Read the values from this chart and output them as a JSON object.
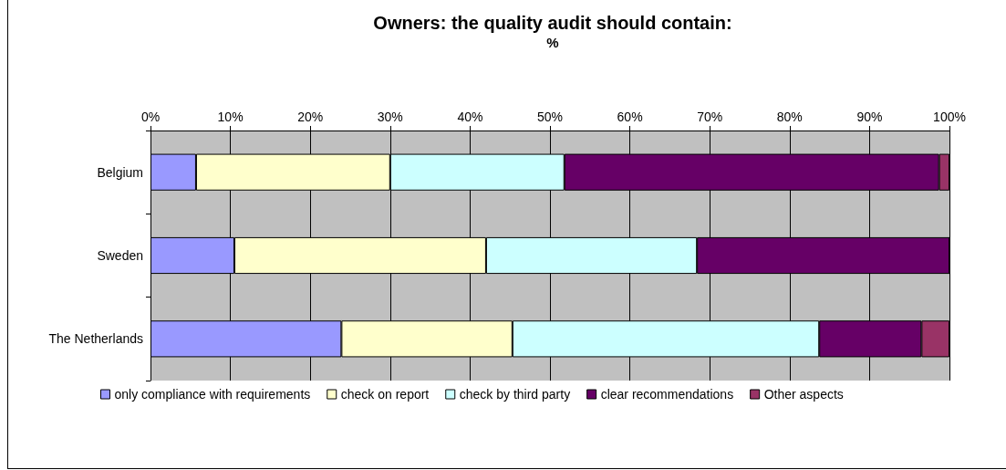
{
  "chart_data": {
    "type": "bar",
    "orientation": "horizontal",
    "stacked": true,
    "title": "Owners: the quality audit should contain:",
    "xlabel": "%",
    "categories": [
      "Belgium",
      "Sweden",
      "The Netherlands"
    ],
    "series": [
      {
        "name": "only compliance with requirements",
        "color": "#9999ff",
        "values": [
          5.7,
          10.5,
          23.9
        ]
      },
      {
        "name": "check on report",
        "color": "#ffffcc",
        "values": [
          24.3,
          31.5,
          21.4
        ]
      },
      {
        "name": "check by third party",
        "color": "#ccffff",
        "values": [
          21.8,
          26.4,
          38.4
        ]
      },
      {
        "name": "clear recommendations",
        "color": "#660066",
        "values": [
          46.9,
          31.6,
          12.8
        ]
      },
      {
        "name": "Other aspects",
        "color": "#993366",
        "values": [
          1.3,
          0,
          3.5
        ]
      }
    ],
    "xlim": [
      0,
      100
    ],
    "xticks": [
      {
        "value": 0,
        "label": "0%"
      },
      {
        "value": 10,
        "label": "10%"
      },
      {
        "value": 20,
        "label": "20%"
      },
      {
        "value": 30,
        "label": "30%"
      },
      {
        "value": 40,
        "label": "40%"
      },
      {
        "value": 50,
        "label": "50%"
      },
      {
        "value": 60,
        "label": "60%"
      },
      {
        "value": 70,
        "label": "70%"
      },
      {
        "value": 80,
        "label": "80%"
      },
      {
        "value": 90,
        "label": "90%"
      },
      {
        "value": 100,
        "label": "100%"
      }
    ],
    "grid": "x",
    "legend": "bottom"
  }
}
